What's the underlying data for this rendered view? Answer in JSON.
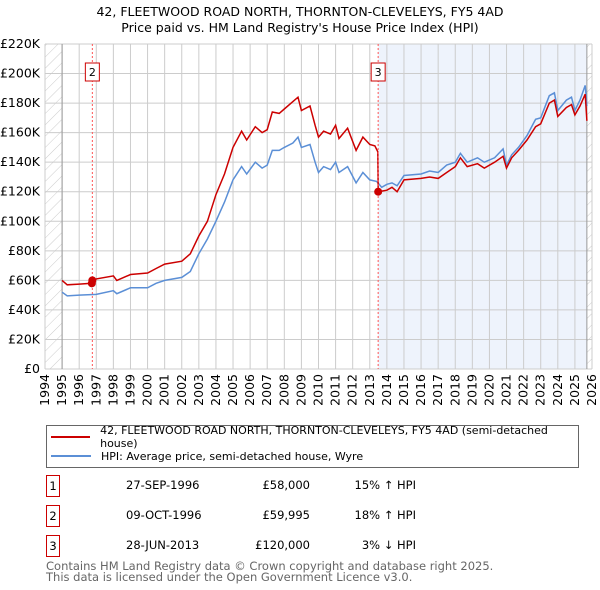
{
  "header": {
    "title": "42, FLEETWOOD ROAD NORTH, THORNTON-CLEVELEYS, FY5 4AD",
    "subtitle": "Price paid vs. HM Land Registry's House Price Index (HPI)"
  },
  "chart_data": {
    "type": "line",
    "title": "42, FLEETWOOD ROAD NORTH, THORNTON-CLEVELEYS, FY5 4AD",
    "subtitle": "Price paid vs. HM Land Registry's House Price Index (HPI)",
    "xlim": [
      1994,
      2026
    ],
    "ylim": [
      0,
      220000
    ],
    "yticks": [
      0,
      20000,
      40000,
      60000,
      80000,
      100000,
      120000,
      140000,
      160000,
      180000,
      200000,
      220000
    ],
    "ytick_labels": [
      "£0",
      "£20K",
      "£40K",
      "£60K",
      "£80K",
      "£100K",
      "£120K",
      "£140K",
      "£160K",
      "£180K",
      "£200K",
      "£220K"
    ],
    "xticks": [
      "1994",
      "1995",
      "1996",
      "1997",
      "1998",
      "1999",
      "2000",
      "2001",
      "2002",
      "2003",
      "2004",
      "2005",
      "2006",
      "2007",
      "2008",
      "2009",
      "2010",
      "2011",
      "2012",
      "2013",
      "2014",
      "2015",
      "2016",
      "2017",
      "2018",
      "2019",
      "2020",
      "2021",
      "2022",
      "2023",
      "2024",
      "2025",
      "2026"
    ],
    "grid": true,
    "series": [
      {
        "name": "42, FLEETWOOD ROAD NORTH, THORNTON-CLEVELEYS, FY5 4AD (semi-detached house)",
        "color": "#cc0000",
        "x": [
          1995,
          1995.3,
          1996,
          1996.74,
          1997,
          1998,
          1998.2,
          1999,
          2000,
          2000.5,
          2001,
          2002,
          2002.5,
          2003,
          2003.5,
          2004,
          2004.5,
          2005,
          2005.5,
          2005.8,
          2006.3,
          2006.7,
          2007,
          2007.3,
          2007.7,
          2008,
          2008.5,
          2008.8,
          2009,
          2009.5,
          2009.8,
          2010,
          2010.3,
          2010.7,
          2011,
          2011.2,
          2011.7,
          2012.2,
          2012.6,
          2013,
          2013.3,
          2013.47,
          2013.49,
          2014,
          2014.3,
          2014.6,
          2015,
          2016,
          2016.5,
          2017,
          2017.5,
          2018,
          2018.3,
          2018.7,
          2019.3,
          2019.7,
          2020.3,
          2020.8,
          2021,
          2021.3,
          2021.7,
          2022.2,
          2022.7,
          2023,
          2023.5,
          2023.8,
          2024,
          2024.5,
          2024.8,
          2025,
          2025.3,
          2025.6,
          2025.7
        ],
        "y": [
          60000,
          57000,
          57500,
          58000,
          61000,
          63000,
          60000,
          64000,
          65000,
          68000,
          71000,
          73000,
          78000,
          90000,
          100000,
          118000,
          132000,
          150000,
          161000,
          155000,
          164000,
          160000,
          162000,
          174000,
          173000,
          176000,
          181000,
          184000,
          175000,
          178000,
          165000,
          157000,
          161000,
          159000,
          165000,
          156000,
          163000,
          148000,
          157000,
          152000,
          151000,
          147000,
          120000,
          121000,
          123000,
          120000,
          128000,
          129000,
          130000,
          129000,
          133000,
          137000,
          143000,
          137000,
          139000,
          136000,
          140000,
          144000,
          136000,
          143000,
          148000,
          155000,
          164000,
          166000,
          180000,
          182000,
          171000,
          177000,
          179000,
          172000,
          178000,
          186000,
          168000
        ]
      },
      {
        "name": "HPI: Average price, semi-detached house, Wyre",
        "color": "#5b8fd6",
        "x": [
          1995,
          1995.3,
          1996,
          1997,
          1998,
          1998.2,
          1999,
          2000,
          2000.5,
          2001,
          2002,
          2002.5,
          2003,
          2003.5,
          2004,
          2004.5,
          2005,
          2005.5,
          2005.8,
          2006.3,
          2006.7,
          2007,
          2007.3,
          2007.7,
          2008,
          2008.5,
          2008.8,
          2009,
          2009.5,
          2009.8,
          2010,
          2010.3,
          2010.7,
          2011,
          2011.2,
          2011.7,
          2012.2,
          2012.6,
          2013,
          2013.4,
          2013.7,
          2014,
          2014.3,
          2014.6,
          2015,
          2016,
          2016.5,
          2017,
          2017.5,
          2018,
          2018.3,
          2018.7,
          2019.3,
          2019.7,
          2020.3,
          2020.8,
          2021,
          2021.3,
          2021.7,
          2022.2,
          2022.7,
          2023,
          2023.5,
          2023.8,
          2024,
          2024.5,
          2024.8,
          2025,
          2025.3,
          2025.6,
          2025.7
        ],
        "y": [
          52000,
          49500,
          50000,
          50500,
          53000,
          51000,
          55000,
          55000,
          58000,
          60000,
          62000,
          66000,
          78000,
          88000,
          100000,
          113000,
          128000,
          137000,
          132000,
          140000,
          136000,
          138000,
          148000,
          148000,
          150000,
          153000,
          157000,
          150000,
          152000,
          140000,
          133000,
          137000,
          135000,
          140000,
          133000,
          137000,
          126000,
          133000,
          128000,
          127000,
          123000,
          125000,
          126000,
          124000,
          131000,
          132000,
          134000,
          133000,
          138000,
          140000,
          146000,
          140000,
          143000,
          140000,
          143000,
          149000,
          138000,
          145000,
          150000,
          158000,
          169000,
          170000,
          185000,
          187000,
          175000,
          182000,
          184000,
          175000,
          182000,
          192000,
          178000
        ]
      }
    ],
    "sales": [
      {
        "id": "1",
        "x": 1996.74,
        "y": 58000
      },
      {
        "id": "2",
        "x": 1996.77,
        "y": 59995
      },
      {
        "id": "3",
        "x": 2013.49,
        "y": 120000
      }
    ],
    "annotations": [
      "2",
      "3"
    ]
  },
  "legend": {
    "items": [
      {
        "label": "42, FLEETWOOD ROAD NORTH, THORNTON-CLEVELEYS, FY5 4AD (semi-detached house)",
        "color": "#cc0000"
      },
      {
        "label": "HPI: Average price, semi-detached house, Wyre",
        "color": "#5b8fd6"
      }
    ]
  },
  "transactions": [
    {
      "num": "1",
      "date": "27-SEP-1996",
      "price": "£58,000",
      "hpi": "15% ↑ HPI"
    },
    {
      "num": "2",
      "date": "09-OCT-1996",
      "price": "£59,995",
      "hpi": "18% ↑ HPI"
    },
    {
      "num": "3",
      "date": "28-JUN-2013",
      "price": "£120,000",
      "hpi": "3% ↓ HPI"
    }
  ],
  "footer": {
    "line1": "Contains HM Land Registry data © Crown copyright and database right 2025.",
    "line2": "This data is licensed under the Open Government Licence v3.0."
  }
}
